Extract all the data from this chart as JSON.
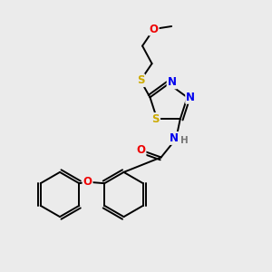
{
  "bg_color": "#ebebeb",
  "atom_colors": {
    "C": "#000000",
    "N": "#0000ee",
    "O": "#ee0000",
    "S": "#ccaa00",
    "H": "#777777"
  },
  "bond_color": "#000000",
  "bond_width": 1.4,
  "figsize": [
    3.0,
    3.0
  ],
  "dpi": 100,
  "xlim": [
    0,
    10
  ],
  "ylim": [
    0,
    10
  ]
}
